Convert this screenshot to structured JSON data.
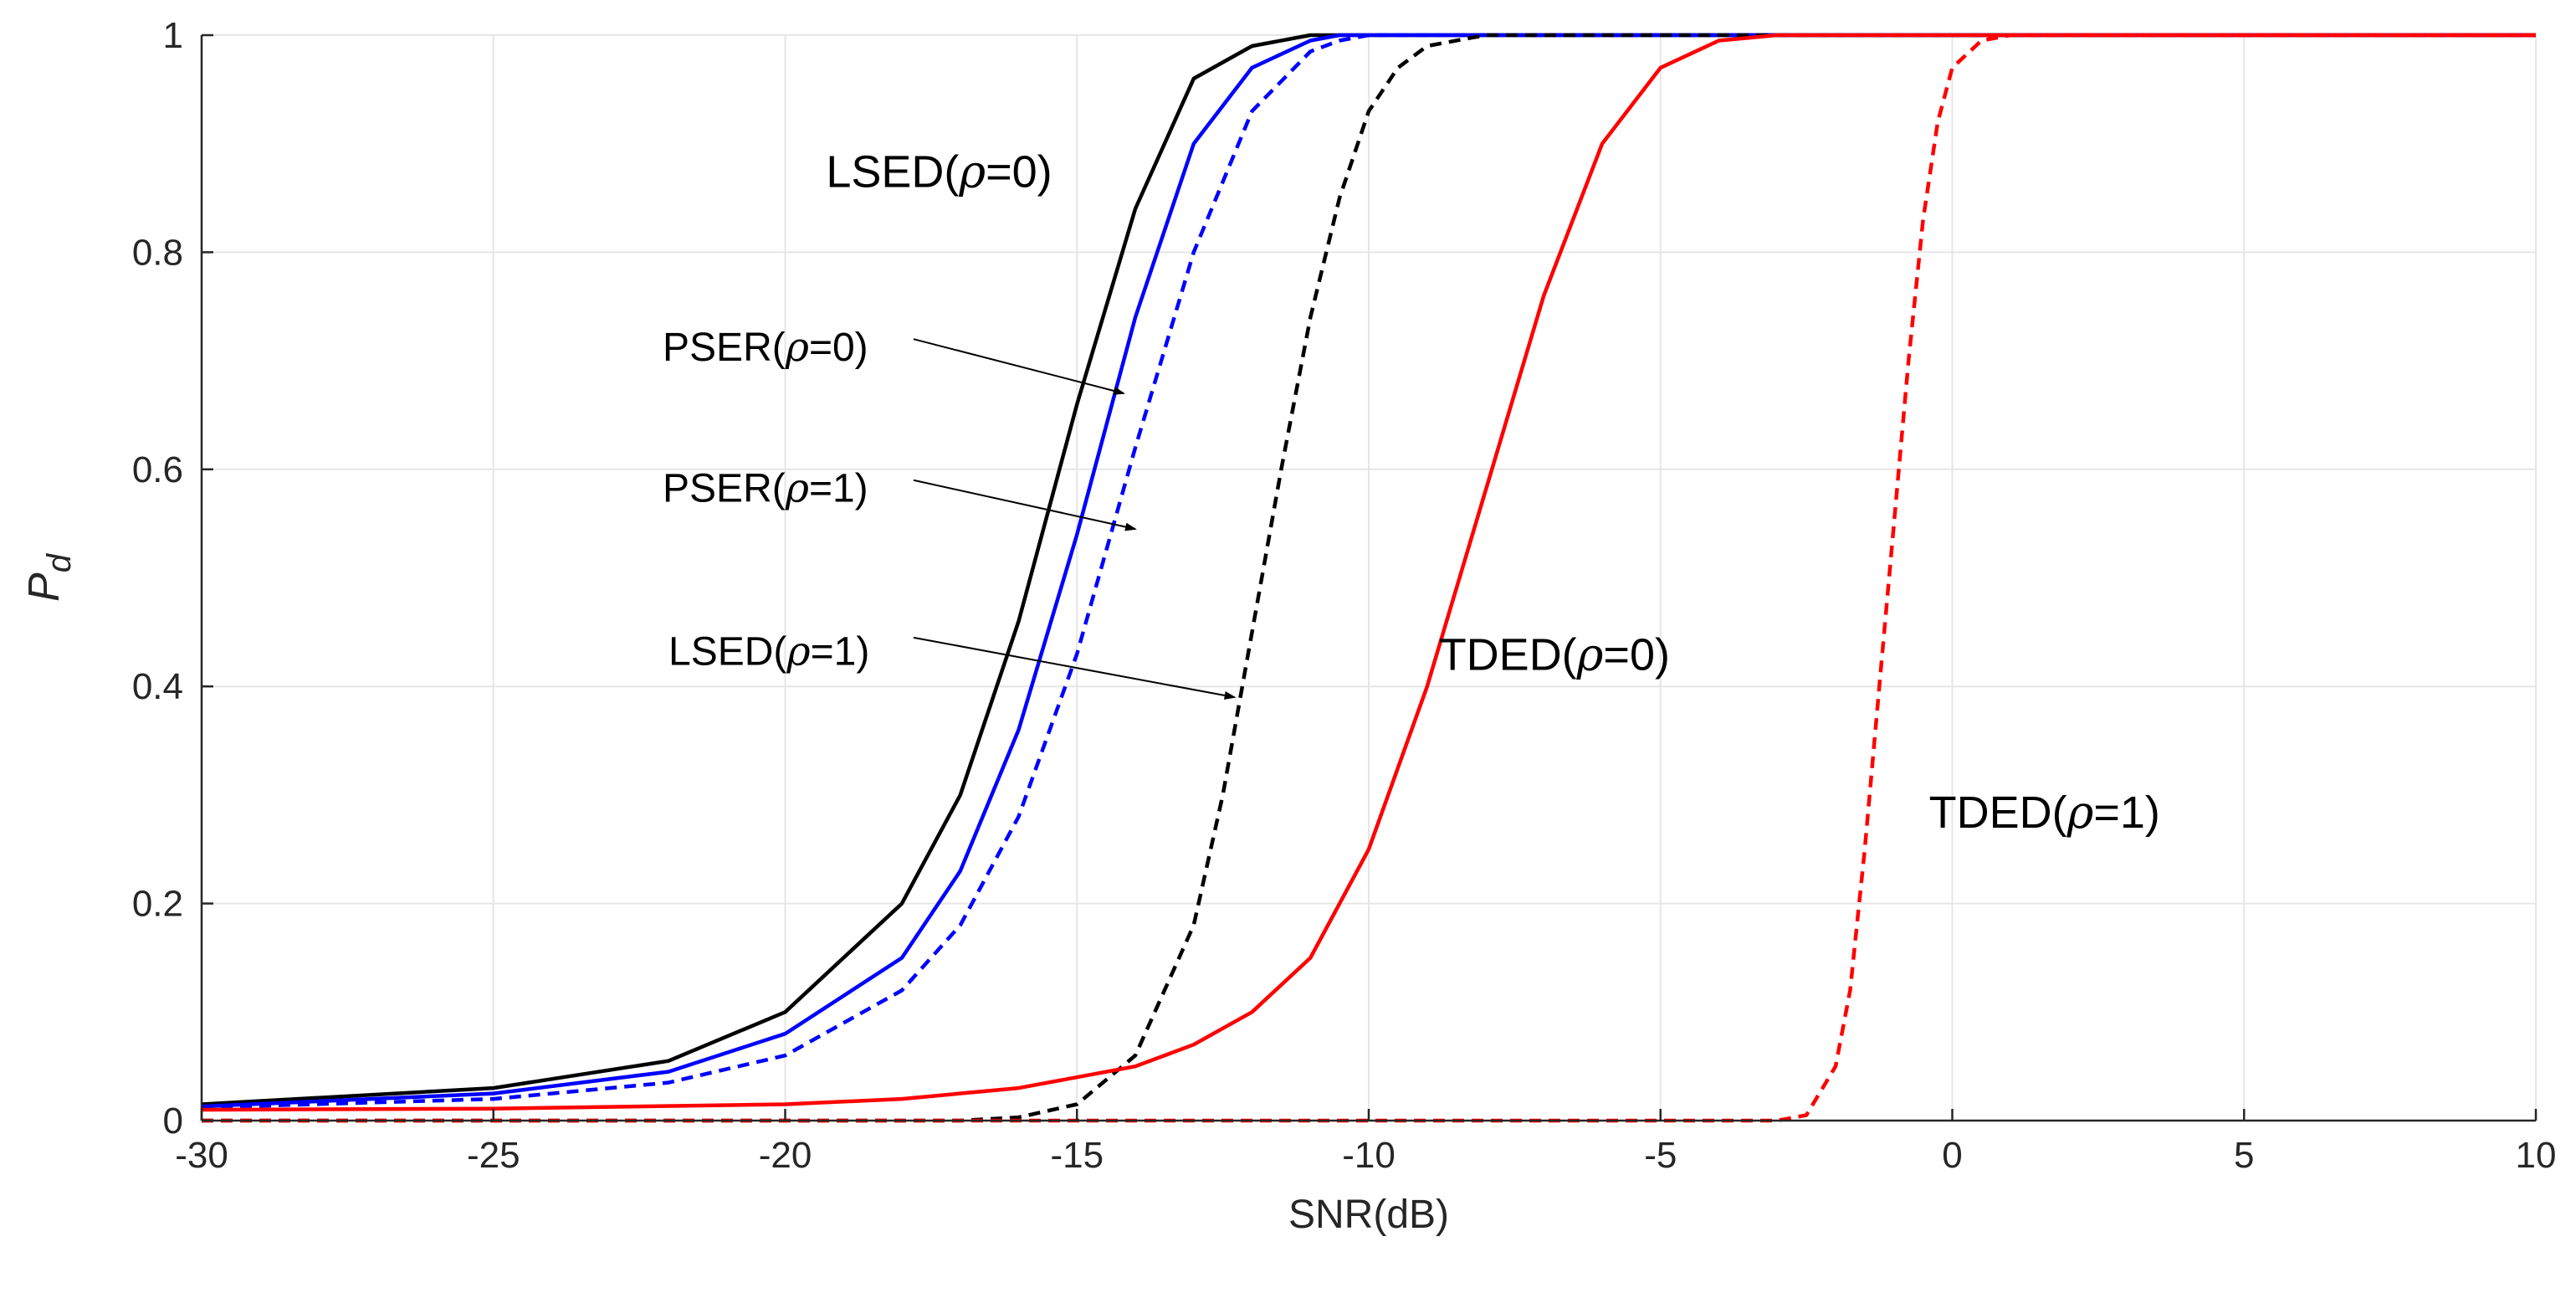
{
  "chart_data": {
    "type": "line",
    "xlabel": "SNR(dB)",
    "ylabel": {
      "main": "P",
      "sub": "d"
    },
    "xlim": [
      -30,
      10
    ],
    "ylim": [
      0,
      1
    ],
    "grid": true,
    "x_ticks": [
      -30,
      -25,
      -20,
      -15,
      -10,
      -5,
      0,
      5,
      10
    ],
    "y_ticks": [
      0,
      0.2,
      0.4,
      0.6,
      0.8,
      1
    ],
    "x_tick_labels": [
      "-30",
      "-25",
      "-20",
      "-15",
      "-10",
      "-5",
      "0",
      "5",
      "10"
    ],
    "y_tick_labels": [
      "0",
      "0.2",
      "0.4",
      "0.6",
      "0.8",
      "1"
    ],
    "series": [
      {
        "name": "LSED(ρ=0)",
        "color": "#000000",
        "dash": "solid",
        "x": [
          -30,
          -25,
          -22,
          -20,
          -18,
          -17,
          -16,
          -15,
          -14,
          -13,
          -12,
          -11,
          -10,
          10
        ],
        "y": [
          0.015,
          0.03,
          0.055,
          0.1,
          0.2,
          0.3,
          0.46,
          0.66,
          0.84,
          0.96,
          0.99,
          1.0,
          1.0,
          1.0
        ]
      },
      {
        "name": "PSER(ρ=0)",
        "color": "#0000ff",
        "dash": "solid",
        "x": [
          -30,
          -25,
          -22,
          -20,
          -18,
          -17,
          -16,
          -15,
          -14,
          -13,
          -12,
          -11,
          -10.5,
          10
        ],
        "y": [
          0.013,
          0.025,
          0.045,
          0.08,
          0.15,
          0.23,
          0.36,
          0.54,
          0.74,
          0.9,
          0.97,
          0.995,
          1.0,
          1.0
        ]
      },
      {
        "name": "PSER(ρ=1)",
        "color": "#0000ff",
        "dash": "dashed",
        "x": [
          -30,
          -25,
          -22,
          -20,
          -18,
          -17,
          -16,
          -15,
          -14,
          -13,
          -12,
          -11,
          -10.5,
          -10,
          10
        ],
        "y": [
          0.012,
          0.02,
          0.035,
          0.06,
          0.12,
          0.18,
          0.28,
          0.43,
          0.62,
          0.8,
          0.93,
          0.985,
          0.995,
          1.0,
          1.0
        ]
      },
      {
        "name": "LSED(ρ=1)",
        "color": "#000000",
        "dash": "dashed",
        "x": [
          -30,
          -17,
          -16,
          -15,
          -14,
          -13,
          -12.5,
          -12,
          -11.5,
          -11,
          -10.5,
          -10,
          -9.5,
          -9,
          -8,
          10
        ],
        "y": [
          0.0,
          0.0,
          0.003,
          0.015,
          0.06,
          0.18,
          0.3,
          0.45,
          0.6,
          0.74,
          0.85,
          0.93,
          0.97,
          0.99,
          1.0,
          1.0
        ]
      },
      {
        "name": "TDED(ρ=0)",
        "color": "#ff0000",
        "dash": "solid",
        "x": [
          -30,
          -25,
          -20,
          -18,
          -16,
          -14,
          -13,
          -12,
          -11,
          -10,
          -9,
          -8,
          -7,
          -6,
          -5,
          -4,
          -3,
          10
        ],
        "y": [
          0.01,
          0.011,
          0.015,
          0.02,
          0.03,
          0.05,
          0.07,
          0.1,
          0.15,
          0.25,
          0.4,
          0.58,
          0.76,
          0.9,
          0.97,
          0.995,
          1.0,
          1.0
        ]
      },
      {
        "name": "TDED(ρ=1)",
        "color": "#ff0000",
        "dash": "dashed",
        "x": [
          -30,
          -3,
          -2.5,
          -2,
          -1.75,
          -1.5,
          -1.25,
          -1,
          -0.75,
          -0.5,
          -0.25,
          0,
          0.5,
          1,
          10
        ],
        "y": [
          0.0,
          0.0,
          0.005,
          0.05,
          0.12,
          0.25,
          0.4,
          0.55,
          0.7,
          0.83,
          0.92,
          0.97,
          0.995,
          1.0,
          1.0
        ]
      }
    ],
    "annotations": [
      {
        "label": "LSED",
        "rho": "0",
        "x": -19.3,
        "y": 0.86,
        "arrow": false,
        "size": "large"
      },
      {
        "label": "PSER",
        "rho": "0",
        "x": -22.1,
        "y": 0.7,
        "arrow": true,
        "arrow_from": [
          -17.8,
          0.72
        ],
        "arrow_to": [
          -14.2,
          0.67
        ],
        "size": "small"
      },
      {
        "label": "PSER",
        "rho": "1",
        "x": -22.1,
        "y": 0.57,
        "arrow": true,
        "arrow_from": [
          -17.8,
          0.59
        ],
        "arrow_to": [
          -14.0,
          0.545
        ],
        "size": "small"
      },
      {
        "label": "LSED",
        "rho": "1",
        "x": -22.0,
        "y": 0.42,
        "arrow": true,
        "arrow_from": [
          -17.8,
          0.445
        ],
        "arrow_to": [
          -12.3,
          0.39
        ],
        "size": "small"
      },
      {
        "label": "TDED",
        "rho": "0",
        "x": -8.8,
        "y": 0.415,
        "arrow": false,
        "size": "large"
      },
      {
        "label": "TDED",
        "rho": "1",
        "x": -0.4,
        "y": 0.27,
        "arrow": false,
        "size": "large"
      }
    ]
  }
}
